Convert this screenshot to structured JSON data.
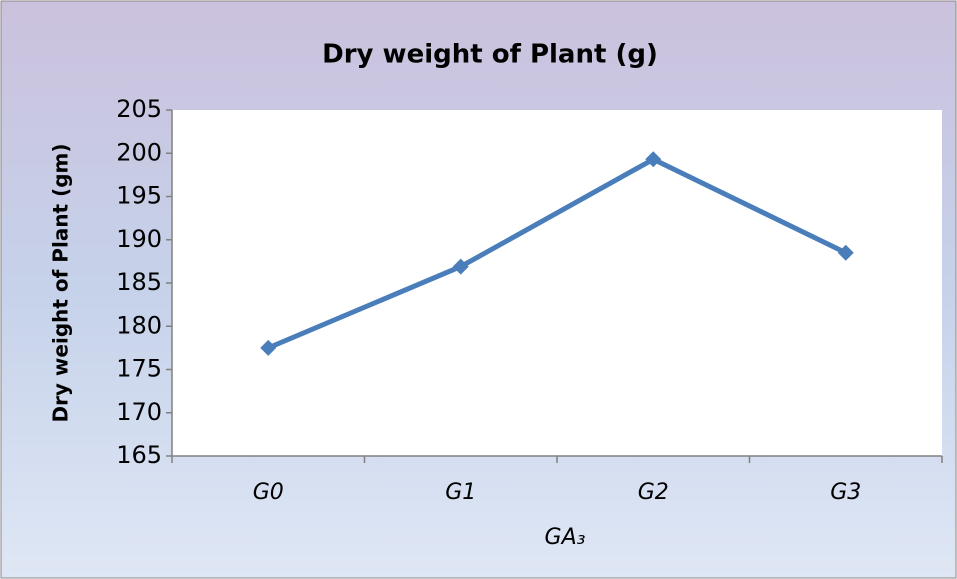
{
  "chart_data": {
    "type": "line",
    "title": "Dry weight of Plant (g)",
    "x_label": "GA₃",
    "y_label": "Dry weight of Plant (gm)",
    "categories": [
      "G0",
      "G1",
      "G2",
      "G3"
    ],
    "series": [
      {
        "name": "Dry weight of Plant (g)",
        "color": "#4a7ebb",
        "values": [
          177.5,
          186.9,
          199.3,
          188.5
        ]
      }
    ],
    "ylim": [
      165,
      205
    ],
    "yticks": [
      165,
      170,
      175,
      180,
      185,
      190,
      195,
      200,
      205
    ],
    "grid": false
  }
}
